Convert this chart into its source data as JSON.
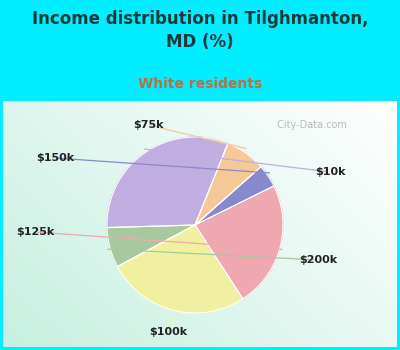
{
  "title": "Income distribution in Tilghmanton,\nMD (%)",
  "subtitle": "White residents",
  "title_color": "#1a3a3a",
  "subtitle_color": "#b87040",
  "bg_cyan": "#00eeff",
  "labels": [
    "$10k",
    "$200k",
    "$100k",
    "$125k",
    "$150k",
    "$75k"
  ],
  "values": [
    30,
    7,
    25,
    22,
    4,
    7
  ],
  "colors": [
    "#c0aee0",
    "#a8c8a0",
    "#f0f0a0",
    "#f0a8b0",
    "#8888cc",
    "#f5c898"
  ],
  "startangle": 68,
  "watermark": " City-Data.com",
  "figsize": [
    4.0,
    3.5
  ],
  "dpi": 100
}
